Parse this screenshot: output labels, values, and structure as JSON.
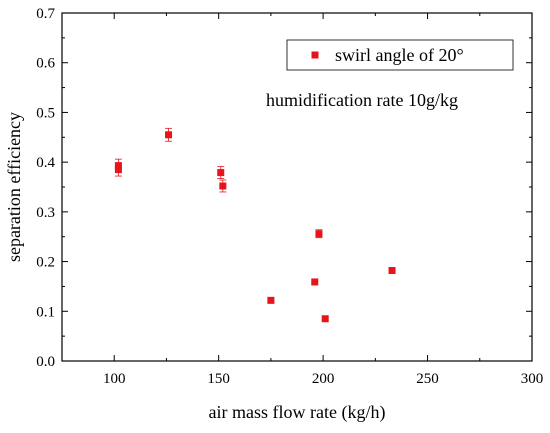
{
  "chart_data": {
    "type": "scatter",
    "title": "",
    "xlabel": "air mass flow rate (kg/h)",
    "ylabel": "separation efficiency",
    "xlim": [
      75,
      300
    ],
    "ylim": [
      0.0,
      0.7
    ],
    "x_ticks": [
      100,
      150,
      200,
      250,
      300
    ],
    "x_tick_labels": [
      "100",
      "150",
      "200",
      "250",
      "300"
    ],
    "y_ticks": [
      0.0,
      0.1,
      0.2,
      0.3,
      0.4,
      0.5,
      0.6,
      0.7
    ],
    "y_tick_labels": [
      "0.0",
      "0.1",
      "0.2",
      "0.3",
      "0.4",
      "0.5",
      "0.6",
      "0.7"
    ],
    "grid": false,
    "legend_position": "top-right",
    "annotation": "humidification rate 10g/kg",
    "series": [
      {
        "name": "swirl angle of 20°",
        "color": "#e8141b",
        "marker": "square",
        "points": [
          {
            "x": 102,
            "y": 0.393,
            "err": 0.013
          },
          {
            "x": 102,
            "y": 0.385,
            "err": 0.013
          },
          {
            "x": 126,
            "y": 0.455,
            "err": 0.013
          },
          {
            "x": 151,
            "y": 0.379,
            "err": 0.012
          },
          {
            "x": 152,
            "y": 0.352,
            "err": 0.012
          },
          {
            "x": 175,
            "y": 0.122,
            "err": 0
          },
          {
            "x": 196,
            "y": 0.159,
            "err": 0
          },
          {
            "x": 198,
            "y": 0.256,
            "err": 0.008
          },
          {
            "x": 201,
            "y": 0.085,
            "err": 0
          },
          {
            "x": 233,
            "y": 0.182,
            "err": 0
          }
        ]
      }
    ]
  }
}
